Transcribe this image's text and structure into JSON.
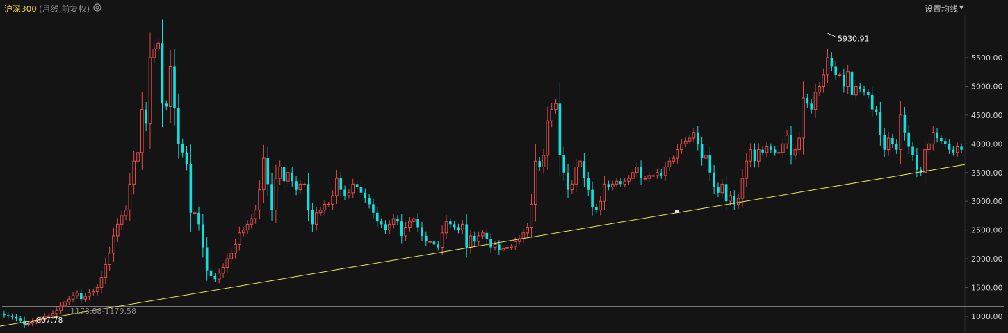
{
  "header": {
    "title": "沪深300",
    "subtitle": "(月线,前复权)",
    "settings_label": "设置均线",
    "settings_icon": "caret-down-icon",
    "gear_icon": "gear-icon"
  },
  "colors": {
    "up": "#e34c48",
    "down": "#11e0e0",
    "trendline": "#e8e85c",
    "background": "#141414",
    "ref_line": "#9a9a9a"
  },
  "chart_data": {
    "type": "candlestick",
    "title": "沪深300",
    "ylim": [
      900,
      6050
    ],
    "yticks": [
      "1000.00",
      "1500.00",
      "2000.00",
      "2500.00",
      "3000.00",
      "3500.00",
      "4000.00",
      "4500.00",
      "5000.00",
      "5500.00"
    ],
    "closes": [
      1020,
      1005,
      990,
      960,
      930,
      860,
      880,
      910,
      930,
      950,
      1000,
      1010,
      1050,
      1100,
      1180,
      1250,
      1300,
      1360,
      1400,
      1300,
      1350,
      1410,
      1430,
      1500,
      1680,
      1900,
      2100,
      2400,
      2600,
      2750,
      2850,
      3300,
      3700,
      3850,
      4600,
      4350,
      5500,
      5650,
      5750,
      4700,
      4650,
      5350,
      4620,
      4000,
      3850,
      3650,
      2800,
      2800,
      2600,
      2200,
      1800,
      1700,
      1650,
      1750,
      1850,
      2000,
      2100,
      2250,
      2450,
      2500,
      2600,
      2700,
      2850,
      3200,
      3750,
      3300,
      2850,
      3400,
      3600,
      3350,
      3500,
      3350,
      3200,
      3300,
      3300,
      2850,
      2600,
      2800,
      2850,
      2950,
      2950,
      3100,
      3400,
      3200,
      3100,
      3150,
      3300,
      3250,
      3150,
      3050,
      2950,
      2800,
      2650,
      2600,
      2500,
      2600,
      2700,
      2650,
      2400,
      2550,
      2650,
      2700,
      2550,
      2400,
      2300,
      2300,
      2250,
      2200,
      2450,
      2650,
      2600,
      2550,
      2500,
      2600,
      2200,
      2400,
      2300,
      2400,
      2450,
      2350,
      2200,
      2250,
      2150,
      2180,
      2200,
      2220,
      2300,
      2350,
      2450,
      2550,
      2950,
      3700,
      3600,
      3800,
      4400,
      4600,
      4700,
      3800,
      3500,
      3200,
      3300,
      3600,
      3700,
      3400,
      3200,
      2900,
      2850,
      3000,
      3300,
      3250,
      3300,
      3350,
      3300,
      3350,
      3400,
      3500,
      3600,
      3400,
      3400,
      3450,
      3450,
      3500,
      3450,
      3600,
      3700,
      3750,
      3900,
      4000,
      4050,
      4100,
      4200,
      4000,
      3750,
      3800,
      3500,
      3250,
      3150,
      3300,
      3000,
      3100,
      2950,
      3050,
      3400,
      3700,
      3900,
      3700,
      3900,
      3850,
      3950,
      3900,
      3850,
      3850,
      4000,
      4150,
      3800,
      3900,
      4100,
      4800,
      4700,
      4600,
      4900,
      5000,
      5200,
      5500,
      5350,
      5200,
      5200,
      5000,
      5250,
      4850,
      5000,
      4950,
      4900,
      4850,
      4600,
      4550,
      4150,
      3900,
      4100,
      4000,
      3900,
      4500,
      4200,
      3950,
      3800,
      3550,
      3500,
      3900,
      4000,
      4200,
      4100,
      4050,
      4000,
      3900,
      3850,
      3950,
      3900
    ],
    "annotations": [
      {
        "label": "5930.91",
        "value": 5930.91
      },
      {
        "label": "807.78",
        "value": 807.78
      },
      {
        "label": "1173.88-1179.58",
        "value": 1176.7
      }
    ],
    "trendline": {
      "start_value": 830,
      "end_value": 3640
    }
  }
}
